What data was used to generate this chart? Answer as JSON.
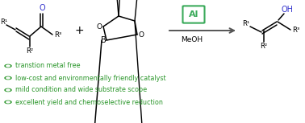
{
  "background_color": "#ffffff",
  "green_color": "#2a962a",
  "blue_color": "#3333cc",
  "arrow_color": "#555555",
  "al_box_color": "#3aaa5a",
  "bullet_texts": [
    "transtion metal free",
    "low-cost and environmentally friendly catalyst",
    "mild condition and wide substrate scope",
    "excellent yield and chemoselective reduction"
  ],
  "al_label": "Al",
  "meoh_label": "MeOH",
  "figsize": [
    3.78,
    1.53
  ],
  "dpi": 100
}
